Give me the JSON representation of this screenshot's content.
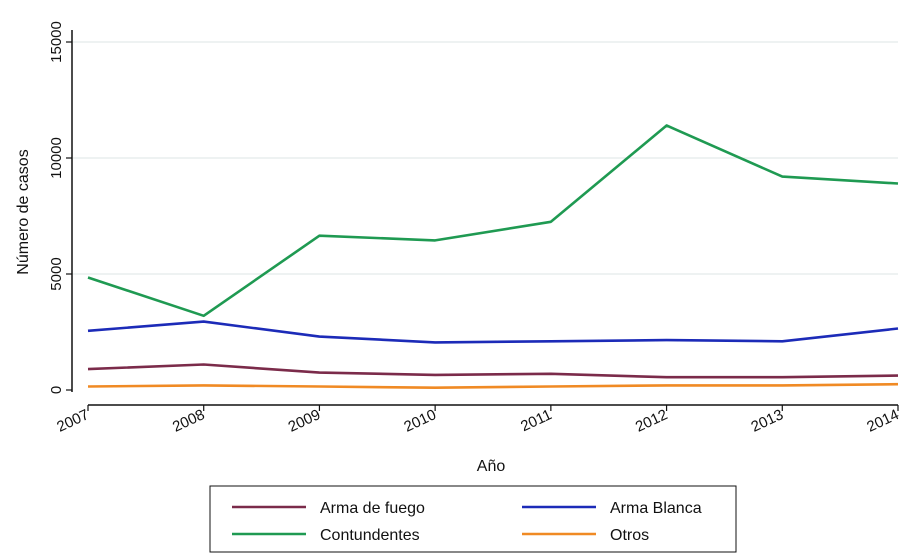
{
  "chart_data": {
    "type": "line",
    "title": "",
    "xlabel": "Año",
    "ylabel": "Número de casos",
    "categories": [
      "2007",
      "2008",
      "2009",
      "2010",
      "2011",
      "2012",
      "2013",
      "2014"
    ],
    "ylim": [
      0,
      15000
    ],
    "yticks": [
      "0",
      "5000",
      "10000",
      "15000"
    ],
    "grid": true,
    "legend_position": "bottom",
    "series": [
      {
        "name": "Arma de fuego",
        "color": "#7b2b4a",
        "values": [
          900,
          1100,
          750,
          650,
          700,
          550,
          550,
          620
        ]
      },
      {
        "name": "Arma Blanca",
        "color": "#1c2bb8",
        "values": [
          2550,
          2950,
          2300,
          2050,
          2100,
          2150,
          2100,
          2650
        ]
      },
      {
        "name": "Contundentes",
        "color": "#1f9a52",
        "values": [
          4850,
          3200,
          6650,
          6450,
          7250,
          11400,
          9200,
          8900
        ]
      },
      {
        "name": "Otros",
        "color": "#f08a24",
        "values": [
          150,
          200,
          150,
          100,
          150,
          200,
          200,
          250
        ]
      }
    ]
  }
}
